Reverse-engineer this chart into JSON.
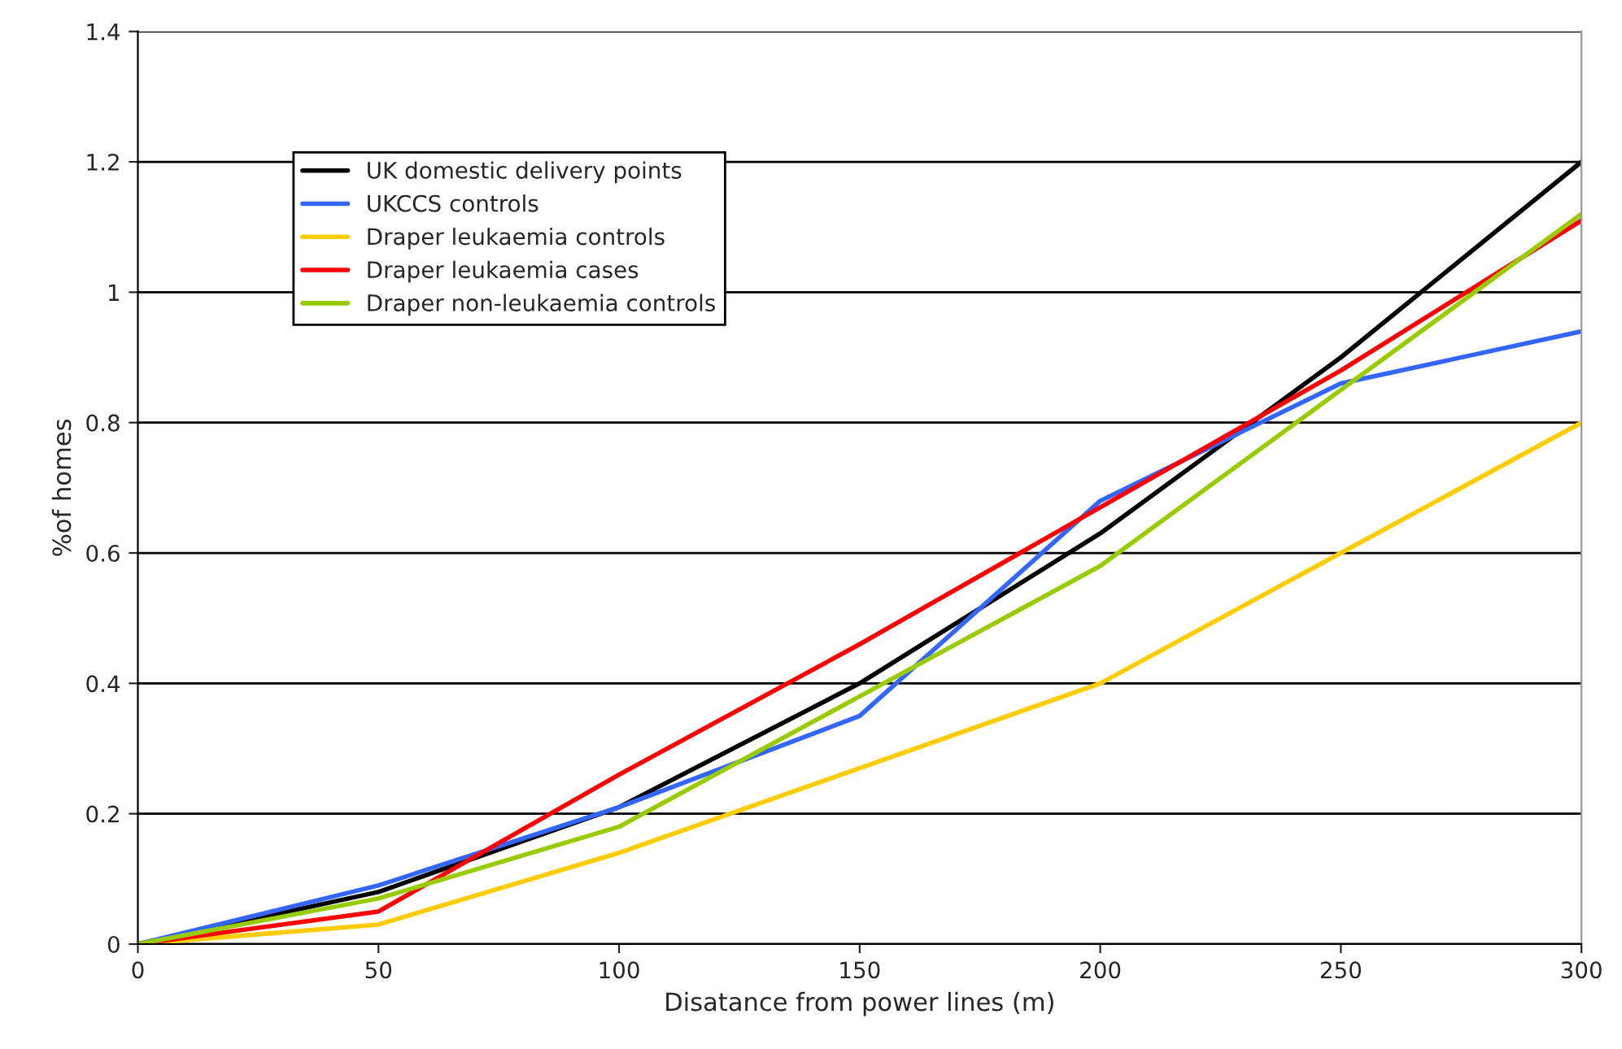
{
  "chart_data": {
    "type": "line",
    "xlabel": "Disatance from power lines (m)",
    "ylabel": "%of homes",
    "xlim": [
      0,
      300
    ],
    "xticks": [
      0,
      50,
      100,
      150,
      200,
      250,
      300
    ],
    "ylim": [
      0,
      1.4
    ],
    "yticks": [
      0,
      {
        "value": 0.2,
        "label": "0.2"
      },
      {
        "value": 0.4,
        "label": "0.4"
      },
      {
        "value": 0.6,
        "label": "0.6"
      },
      {
        "value": 0.8,
        "label": "0.8"
      },
      1,
      {
        "value": 1.2,
        "label": "1.2"
      },
      {
        "value": 1.4,
        "label": "1.4"
      }
    ],
    "grid": "y",
    "legend": "top left",
    "marker": "none",
    "line_style": "solid",
    "x": [
      0,
      50,
      100,
      150,
      200,
      250,
      300
    ],
    "series": [
      {
        "name": "UK domestic delivery points",
        "color": "#000000",
        "values": [
          0,
          0.08,
          0.21,
          0.4,
          0.63,
          0.9,
          1.2
        ]
      },
      {
        "name": "UKCCS controls",
        "color": "#3366ff",
        "values": [
          0,
          0.09,
          0.21,
          0.35,
          0.68,
          0.86,
          0.94
        ]
      },
      {
        "name": "Draper leukaemia controls",
        "color": "#ffcc00",
        "values": [
          0,
          0.03,
          0.14,
          0.27,
          0.4,
          0.6,
          0.8
        ]
      },
      {
        "name": "Draper leukaemia cases",
        "color": "#ff0000",
        "values": [
          0,
          0.05,
          0.26,
          0.46,
          0.67,
          0.88,
          1.11
        ]
      },
      {
        "name": "Draper non-leukaemia controls",
        "color": "#99cc00",
        "values": [
          0,
          0.07,
          0.18,
          0.38,
          0.58,
          0.85,
          1.12
        ]
      }
    ]
  }
}
